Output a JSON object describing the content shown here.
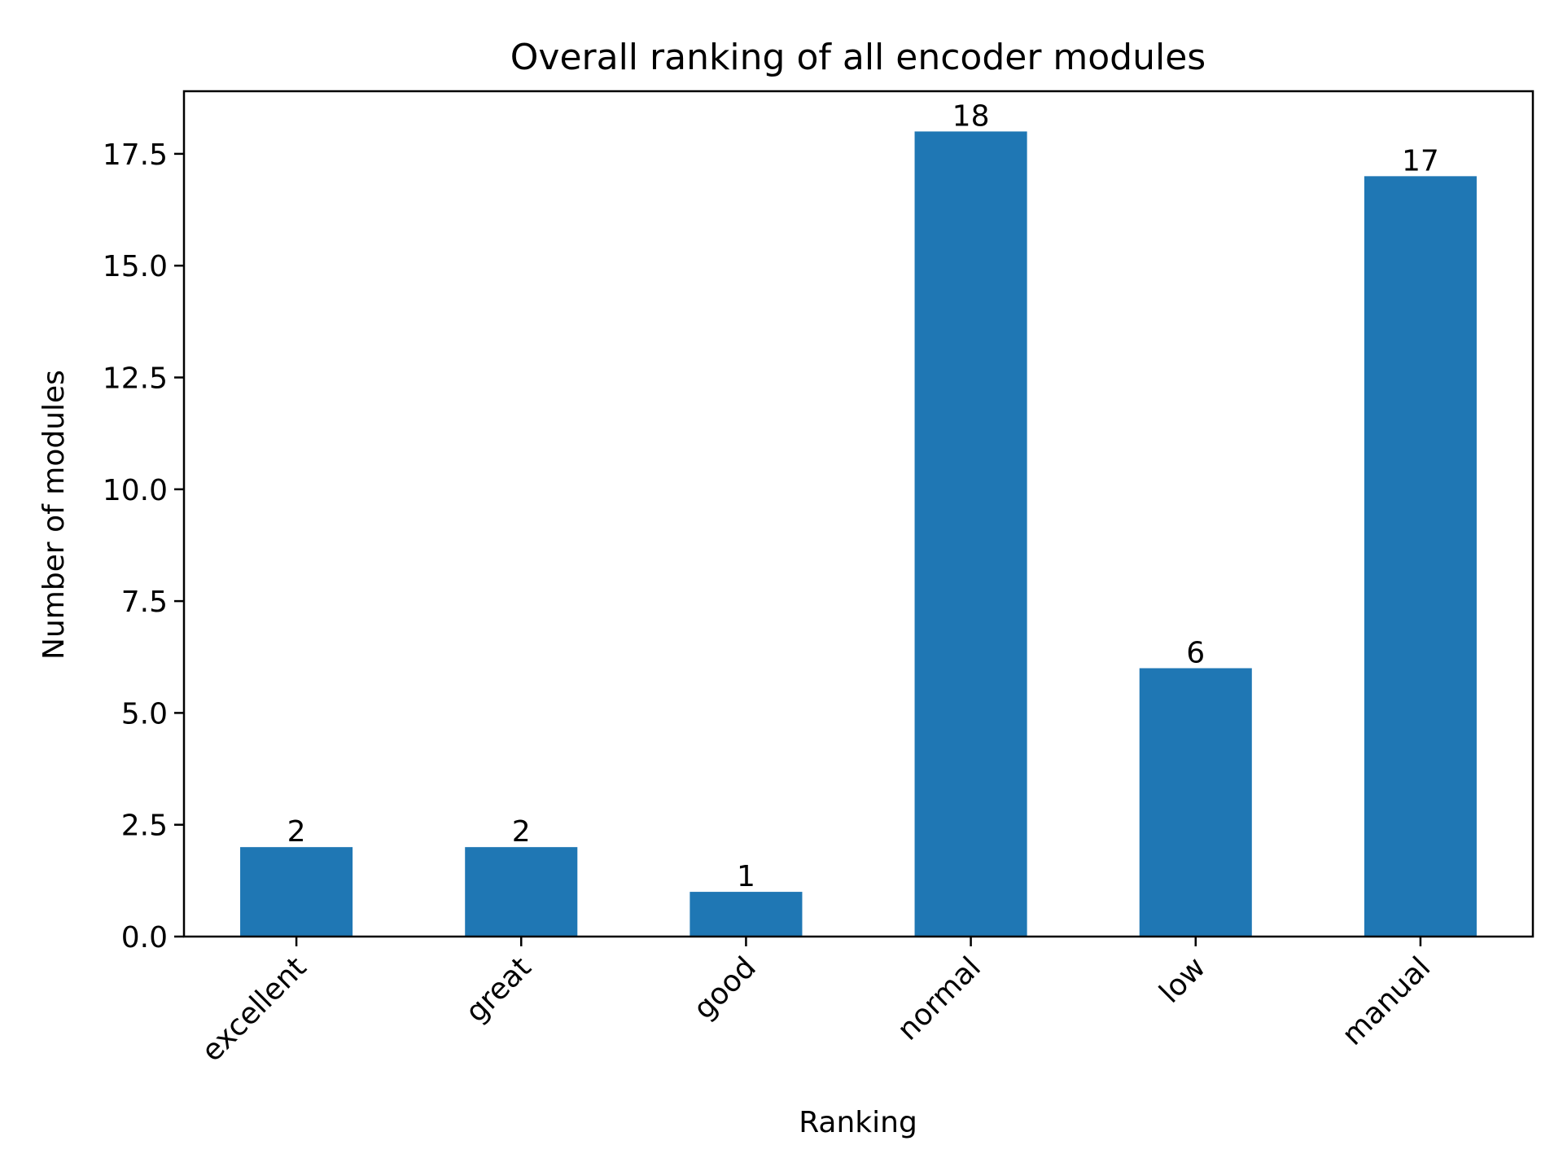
{
  "chart_data": {
    "type": "bar",
    "title": "Overall ranking of all encoder modules",
    "xlabel": "Ranking",
    "ylabel": "Number of modules",
    "categories": [
      "excellent",
      "great",
      "good",
      "normal",
      "low",
      "manual"
    ],
    "values": [
      2,
      2,
      1,
      18,
      6,
      17
    ],
    "data_labels": [
      "2",
      "2",
      "1",
      "18",
      "6",
      "17"
    ],
    "ylim": [
      0,
      18.9
    ],
    "yticks": [
      0,
      2.5,
      5,
      7.5,
      10,
      12.5,
      15,
      17.5
    ],
    "ytick_labels": [
      "0.0",
      "2.5",
      "5.0",
      "7.5",
      "10.0",
      "12.5",
      "15.0",
      "17.5"
    ],
    "bar_color": "#1f77b4",
    "grid": false,
    "legend": "none"
  }
}
